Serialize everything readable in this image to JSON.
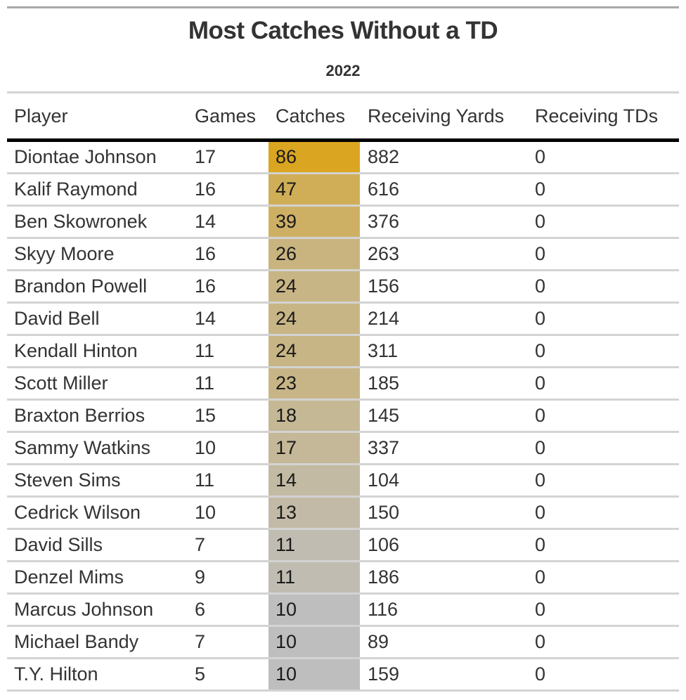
{
  "title": "Most Catches Without a TD",
  "subtitle": "2022",
  "colors": {
    "catches_high": "#DAA520",
    "catches_low": "#BEBEBE",
    "text": "#333333",
    "header_rule": "#000000",
    "row_rule": "#D3D3D3"
  },
  "columns": [
    "Player",
    "Games",
    "Catches",
    "Receiving Yards",
    "Receiving TDs"
  ],
  "rows": [
    {
      "player": "Diontae Johnson",
      "games": "17",
      "catches": "86",
      "yards": "882",
      "tds": "0"
    },
    {
      "player": "Kalif Raymond",
      "games": "16",
      "catches": "47",
      "yards": "616",
      "tds": "0"
    },
    {
      "player": "Ben Skowronek",
      "games": "14",
      "catches": "39",
      "yards": "376",
      "tds": "0"
    },
    {
      "player": "Skyy Moore",
      "games": "16",
      "catches": "26",
      "yards": "263",
      "tds": "0"
    },
    {
      "player": "Brandon Powell",
      "games": "16",
      "catches": "24",
      "yards": "156",
      "tds": "0"
    },
    {
      "player": "David Bell",
      "games": "14",
      "catches": "24",
      "yards": "214",
      "tds": "0"
    },
    {
      "player": "Kendall Hinton",
      "games": "11",
      "catches": "24",
      "yards": "311",
      "tds": "0"
    },
    {
      "player": "Scott Miller",
      "games": "11",
      "catches": "23",
      "yards": "185",
      "tds": "0"
    },
    {
      "player": "Braxton Berrios",
      "games": "15",
      "catches": "18",
      "yards": "145",
      "tds": "0"
    },
    {
      "player": "Sammy Watkins",
      "games": "10",
      "catches": "17",
      "yards": "337",
      "tds": "0"
    },
    {
      "player": "Steven Sims",
      "games": "11",
      "catches": "14",
      "yards": "104",
      "tds": "0"
    },
    {
      "player": "Cedrick Wilson",
      "games": "10",
      "catches": "13",
      "yards": "150",
      "tds": "0"
    },
    {
      "player": "David Sills",
      "games": "7",
      "catches": "11",
      "yards": "106",
      "tds": "0"
    },
    {
      "player": "Denzel Mims",
      "games": "9",
      "catches": "11",
      "yards": "186",
      "tds": "0"
    },
    {
      "player": "Marcus Johnson",
      "games": "6",
      "catches": "10",
      "yards": "116",
      "tds": "0"
    },
    {
      "player": "Michael Bandy",
      "games": "7",
      "catches": "10",
      "yards": "89",
      "tds": "0"
    },
    {
      "player": "T.Y. Hilton",
      "games": "5",
      "catches": "10",
      "yards": "159",
      "tds": "0"
    }
  ]
}
